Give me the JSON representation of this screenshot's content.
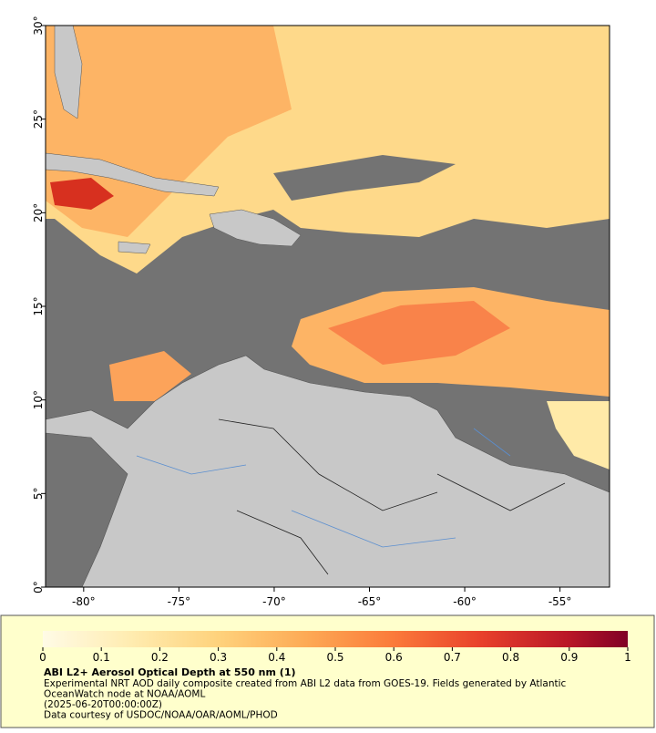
{
  "map": {
    "type": "map",
    "xlim": [
      -82,
      -52.4
    ],
    "ylim": [
      0,
      30
    ],
    "xticks": [
      {
        "value": -80,
        "label": "-80°"
      },
      {
        "value": -75,
        "label": "-75°"
      },
      {
        "value": -70,
        "label": "-70°"
      },
      {
        "value": -65,
        "label": "-65°"
      },
      {
        "value": -60,
        "label": "-60°"
      },
      {
        "value": -55,
        "label": "-55°"
      }
    ],
    "yticks": [
      {
        "value": 0,
        "label": "0°"
      },
      {
        "value": 5,
        "label": "5°"
      },
      {
        "value": 10,
        "label": "10°"
      },
      {
        "value": 15,
        "label": "15°"
      },
      {
        "value": 20,
        "label": "20°"
      },
      {
        "value": 25,
        "label": "25°"
      },
      {
        "value": 30,
        "label": "30°"
      }
    ]
  },
  "colorbar": {
    "range": [
      0,
      1
    ],
    "ticks": [
      0,
      0.1,
      0.2,
      0.3,
      0.4,
      0.5,
      0.6,
      0.7,
      0.8,
      0.9,
      1
    ]
  },
  "caption": {
    "title": "ABI L2+ Aerosol Optical Depth at 550 nm (1)",
    "lines": [
      "Experimental NRT AOD daily composite created from ABI L2 data from GOES-19. Fields generated by Atlantic",
      "OceanWatch node at NOAA/AOML",
      "(2025-06-20T00:00:00Z)",
      "Data courtesy of USDOC/NOAA/OAR/AOML/PHOD"
    ]
  }
}
